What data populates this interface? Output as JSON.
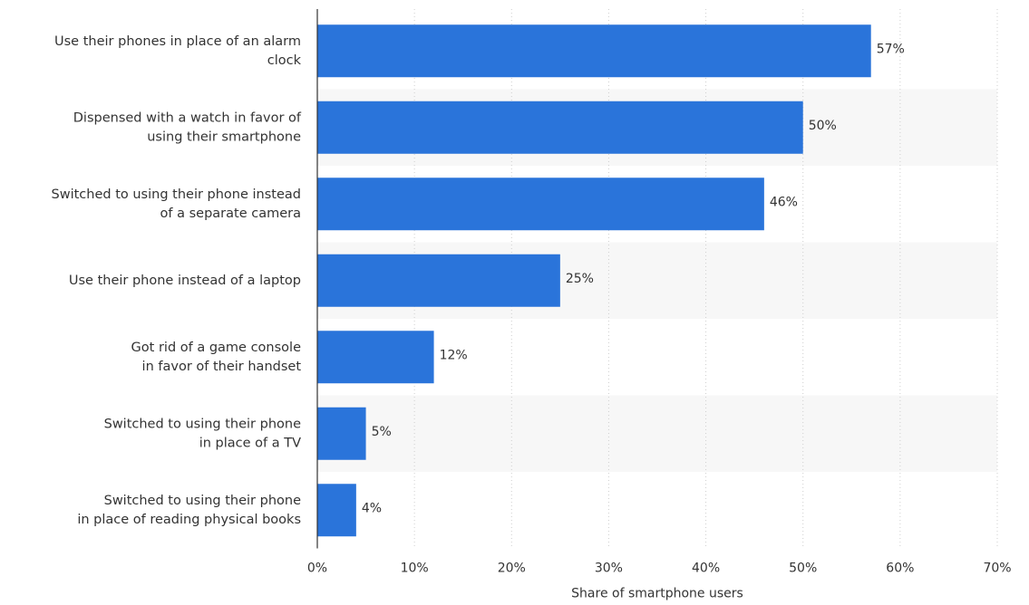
{
  "chart_data": {
    "type": "bar",
    "orientation": "horizontal",
    "categories": [
      [
        "Use their phones in place of an alarm",
        "clock"
      ],
      [
        "Dispensed with a watch in favor of",
        "using their smartphone"
      ],
      [
        "Switched to using their phone instead",
        "of a separate camera"
      ],
      [
        "Use their phone instead of a laptop"
      ],
      [
        "Got rid of a game console",
        "in favor of their handset"
      ],
      [
        "Switched to using their phone",
        "in place of a TV"
      ],
      [
        "Switched to using their phone",
        "in place of reading physical books"
      ]
    ],
    "values": [
      57,
      50,
      46,
      25,
      12,
      5,
      4
    ],
    "value_labels": [
      "57%",
      "50%",
      "46%",
      "25%",
      "12%",
      "5%",
      "4%"
    ],
    "xlim": [
      0,
      70
    ],
    "xticks": [
      0,
      10,
      20,
      30,
      40,
      50,
      60,
      70
    ],
    "xtick_labels": [
      "0%",
      "10%",
      "20%",
      "30%",
      "40%",
      "50%",
      "60%",
      "70%"
    ],
    "xlabel": "Share of smartphone users",
    "grid": "vertical dotted",
    "bar_color": "#2a74da",
    "band_color": "#f7f7f7"
  }
}
